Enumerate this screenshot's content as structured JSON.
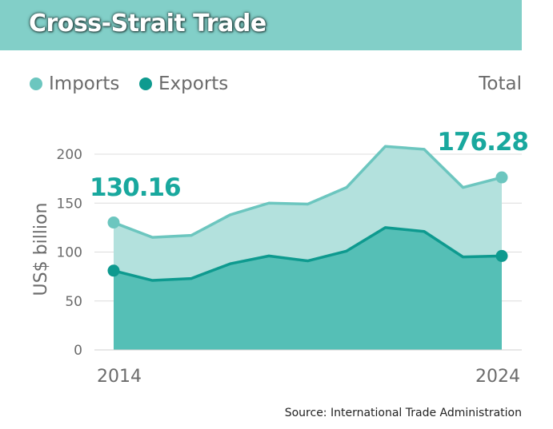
{
  "header": {
    "title": "Cross-Strait Trade"
  },
  "legend": {
    "imports_label": "Imports",
    "exports_label": "Exports",
    "total_label": "Total"
  },
  "colors": {
    "imports": "#6cc6bf",
    "imports_fill": "#b3e1dd",
    "exports": "#0e9a8f",
    "exports_fill": "#55bfb6",
    "annotation": "#19a89e"
  },
  "source": "Source: International Trade Administration",
  "chart_data": {
    "type": "area",
    "ylabel": "US$ billion",
    "xlabel": "",
    "ylim": [
      0,
      200
    ],
    "yticks": [
      0,
      50,
      100,
      150,
      200
    ],
    "x": [
      2014,
      2015,
      2016,
      2017,
      2018,
      2019,
      2020,
      2021,
      2022,
      2023,
      2024
    ],
    "x_tick_labels": [
      "2014",
      "2024"
    ],
    "grid": true,
    "legend_position": "top-left",
    "series": [
      {
        "name": "Exports",
        "values": [
          81,
          71,
          73,
          88,
          96,
          91,
          101,
          125,
          121,
          95,
          96
        ]
      },
      {
        "name": "Imports",
        "values": [
          130.16,
          115,
          117,
          138,
          150,
          149,
          166,
          208,
          205,
          166,
          176.28
        ]
      }
    ],
    "annotations": [
      {
        "x": 2014,
        "text": "130.16"
      },
      {
        "x": 2024,
        "text": "176.28"
      }
    ]
  }
}
